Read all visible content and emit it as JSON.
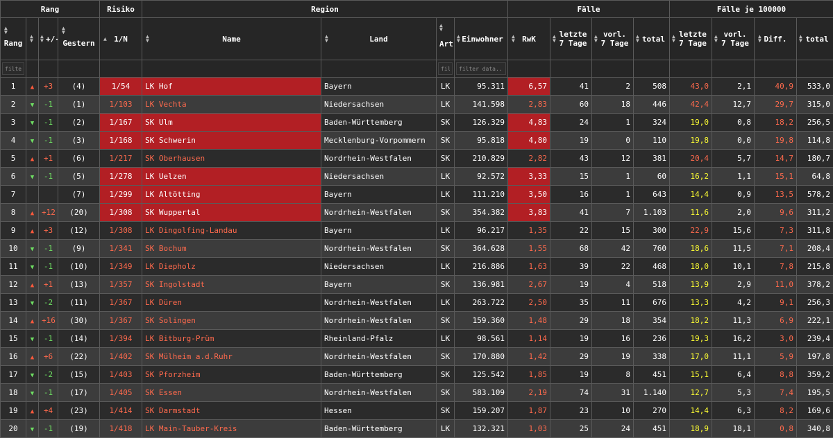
{
  "groups": {
    "rang": "Rang",
    "risiko": "Risiko",
    "region": "Region",
    "faelle": "Fälle",
    "faelle100k": "Fälle je 100000"
  },
  "columns": {
    "rang": "Rang",
    "change": "+/-",
    "gestern": "Gestern",
    "risk": "1/N",
    "name": "Name",
    "land": "Land",
    "art": "Art",
    "einwohner": "Einwohner",
    "rwk": "RwK",
    "letzte7": "letzte 7 Tage",
    "vorl7": "vorl. 7 Tage",
    "total": "total",
    "letzte7_100k": "letzte 7 Tage",
    "vorl7_100k": "vorl. 7 Tage",
    "diff": "Diff.",
    "total_100k": "total"
  },
  "filters": {
    "rang": "filter c",
    "art": "filte",
    "einwohner": "filter data..."
  },
  "rows": [
    {
      "rang": "1",
      "dir": "up",
      "change": "+3",
      "gestern": "(4)",
      "risk": "1/54",
      "name": "LK Hof",
      "land": "Bayern",
      "art": "LK",
      "einwohner": "95.311",
      "rwk": "6,57",
      "l7": "41",
      "v7": "2",
      "total": "508",
      "l7k": "43,0",
      "v7k": "2,1",
      "diff": "40,9",
      "totk": "533,0",
      "hl": true,
      "inc": "orange"
    },
    {
      "rang": "2",
      "dir": "down",
      "change": "-1",
      "gestern": "(1)",
      "risk": "1/103",
      "name": "LK Vechta",
      "land": "Niedersachsen",
      "art": "LK",
      "einwohner": "141.598",
      "rwk": "2,83",
      "l7": "60",
      "v7": "18",
      "total": "446",
      "l7k": "42,4",
      "v7k": "12,7",
      "diff": "29,7",
      "totk": "315,0",
      "hl": false,
      "inc": "orange"
    },
    {
      "rang": "3",
      "dir": "down",
      "change": "-1",
      "gestern": "(2)",
      "risk": "1/167",
      "name": "SK Ulm",
      "land": "Baden-Württemberg",
      "art": "SK",
      "einwohner": "126.329",
      "rwk": "4,83",
      "l7": "24",
      "v7": "1",
      "total": "324",
      "l7k": "19,0",
      "v7k": "0,8",
      "diff": "18,2",
      "totk": "256,5",
      "hl": true,
      "inc": "yellow"
    },
    {
      "rang": "4",
      "dir": "down",
      "change": "-1",
      "gestern": "(3)",
      "risk": "1/168",
      "name": "SK Schwerin",
      "land": "Mecklenburg-Vorpommern",
      "art": "SK",
      "einwohner": "95.818",
      "rwk": "4,80",
      "l7": "19",
      "v7": "0",
      "total": "110",
      "l7k": "19,8",
      "v7k": "0,0",
      "diff": "19,8",
      "totk": "114,8",
      "hl": true,
      "inc": "yellow"
    },
    {
      "rang": "5",
      "dir": "up",
      "change": "+1",
      "gestern": "(6)",
      "risk": "1/217",
      "name": "SK Oberhausen",
      "land": "Nordrhein-Westfalen",
      "art": "SK",
      "einwohner": "210.829",
      "rwk": "2,82",
      "l7": "43",
      "v7": "12",
      "total": "381",
      "l7k": "20,4",
      "v7k": "5,7",
      "diff": "14,7",
      "totk": "180,7",
      "hl": false,
      "inc": "orange"
    },
    {
      "rang": "6",
      "dir": "down",
      "change": "-1",
      "gestern": "(5)",
      "risk": "1/278",
      "name": "LK Uelzen",
      "land": "Niedersachsen",
      "art": "LK",
      "einwohner": "92.572",
      "rwk": "3,33",
      "l7": "15",
      "v7": "1",
      "total": "60",
      "l7k": "16,2",
      "v7k": "1,1",
      "diff": "15,1",
      "totk": "64,8",
      "hl": true,
      "inc": "yellow"
    },
    {
      "rang": "7",
      "dir": "",
      "change": "",
      "gestern": "(7)",
      "risk": "1/299",
      "name": "LK Altötting",
      "land": "Bayern",
      "art": "LK",
      "einwohner": "111.210",
      "rwk": "3,50",
      "l7": "16",
      "v7": "1",
      "total": "643",
      "l7k": "14,4",
      "v7k": "0,9",
      "diff": "13,5",
      "totk": "578,2",
      "hl": true,
      "inc": "yellow"
    },
    {
      "rang": "8",
      "dir": "up",
      "change": "+12",
      "gestern": "(20)",
      "risk": "1/308",
      "name": "SK Wuppertal",
      "land": "Nordrhein-Westfalen",
      "art": "SK",
      "einwohner": "354.382",
      "rwk": "3,83",
      "l7": "41",
      "v7": "7",
      "total": "1.103",
      "l7k": "11,6",
      "v7k": "2,0",
      "diff": "9,6",
      "totk": "311,2",
      "hl": true,
      "inc": "yellow"
    },
    {
      "rang": "9",
      "dir": "up",
      "change": "+3",
      "gestern": "(12)",
      "risk": "1/308",
      "name": "LK Dingolfing-Landau",
      "land": "Bayern",
      "art": "LK",
      "einwohner": "96.217",
      "rwk": "1,35",
      "l7": "22",
      "v7": "15",
      "total": "300",
      "l7k": "22,9",
      "v7k": "15,6",
      "diff": "7,3",
      "totk": "311,8",
      "hl": false,
      "inc": "orange"
    },
    {
      "rang": "10",
      "dir": "down",
      "change": "-1",
      "gestern": "(9)",
      "risk": "1/341",
      "name": "SK Bochum",
      "land": "Nordrhein-Westfalen",
      "art": "SK",
      "einwohner": "364.628",
      "rwk": "1,55",
      "l7": "68",
      "v7": "42",
      "total": "760",
      "l7k": "18,6",
      "v7k": "11,5",
      "diff": "7,1",
      "totk": "208,4",
      "hl": false,
      "inc": "yellow"
    },
    {
      "rang": "11",
      "dir": "down",
      "change": "-1",
      "gestern": "(10)",
      "risk": "1/349",
      "name": "LK Diepholz",
      "land": "Niedersachsen",
      "art": "LK",
      "einwohner": "216.886",
      "rwk": "1,63",
      "l7": "39",
      "v7": "22",
      "total": "468",
      "l7k": "18,0",
      "v7k": "10,1",
      "diff": "7,8",
      "totk": "215,8",
      "hl": false,
      "inc": "yellow"
    },
    {
      "rang": "12",
      "dir": "up",
      "change": "+1",
      "gestern": "(13)",
      "risk": "1/357",
      "name": "SK Ingolstadt",
      "land": "Bayern",
      "art": "SK",
      "einwohner": "136.981",
      "rwk": "2,67",
      "l7": "19",
      "v7": "4",
      "total": "518",
      "l7k": "13,9",
      "v7k": "2,9",
      "diff": "11,0",
      "totk": "378,2",
      "hl": false,
      "inc": "yellow"
    },
    {
      "rang": "13",
      "dir": "down",
      "change": "-2",
      "gestern": "(11)",
      "risk": "1/367",
      "name": "LK Düren",
      "land": "Nordrhein-Westfalen",
      "art": "LK",
      "einwohner": "263.722",
      "rwk": "2,50",
      "l7": "35",
      "v7": "11",
      "total": "676",
      "l7k": "13,3",
      "v7k": "4,2",
      "diff": "9,1",
      "totk": "256,3",
      "hl": false,
      "inc": "yellow"
    },
    {
      "rang": "14",
      "dir": "up",
      "change": "+16",
      "gestern": "(30)",
      "risk": "1/367",
      "name": "SK Solingen",
      "land": "Nordrhein-Westfalen",
      "art": "SK",
      "einwohner": "159.360",
      "rwk": "1,48",
      "l7": "29",
      "v7": "18",
      "total": "354",
      "l7k": "18,2",
      "v7k": "11,3",
      "diff": "6,9",
      "totk": "222,1",
      "hl": false,
      "inc": "yellow"
    },
    {
      "rang": "15",
      "dir": "down",
      "change": "-1",
      "gestern": "(14)",
      "risk": "1/394",
      "name": "LK Bitburg-Prüm",
      "land": "Rheinland-Pfalz",
      "art": "LK",
      "einwohner": "98.561",
      "rwk": "1,14",
      "l7": "19",
      "v7": "16",
      "total": "236",
      "l7k": "19,3",
      "v7k": "16,2",
      "diff": "3,0",
      "totk": "239,4",
      "hl": false,
      "inc": "yellow"
    },
    {
      "rang": "16",
      "dir": "up",
      "change": "+6",
      "gestern": "(22)",
      "risk": "1/402",
      "name": "SK Mülheim a.d.Ruhr",
      "land": "Nordrhein-Westfalen",
      "art": "SK",
      "einwohner": "170.880",
      "rwk": "1,42",
      "l7": "29",
      "v7": "19",
      "total": "338",
      "l7k": "17,0",
      "v7k": "11,1",
      "diff": "5,9",
      "totk": "197,8",
      "hl": false,
      "inc": "yellow"
    },
    {
      "rang": "17",
      "dir": "down",
      "change": "-2",
      "gestern": "(15)",
      "risk": "1/403",
      "name": "SK Pforzheim",
      "land": "Baden-Württemberg",
      "art": "SK",
      "einwohner": "125.542",
      "rwk": "1,85",
      "l7": "19",
      "v7": "8",
      "total": "451",
      "l7k": "15,1",
      "v7k": "6,4",
      "diff": "8,8",
      "totk": "359,2",
      "hl": false,
      "inc": "yellow"
    },
    {
      "rang": "18",
      "dir": "down",
      "change": "-1",
      "gestern": "(17)",
      "risk": "1/405",
      "name": "SK Essen",
      "land": "Nordrhein-Westfalen",
      "art": "SK",
      "einwohner": "583.109",
      "rwk": "2,19",
      "l7": "74",
      "v7": "31",
      "total": "1.140",
      "l7k": "12,7",
      "v7k": "5,3",
      "diff": "7,4",
      "totk": "195,5",
      "hl": false,
      "inc": "yellow"
    },
    {
      "rang": "19",
      "dir": "up",
      "change": "+4",
      "gestern": "(23)",
      "risk": "1/414",
      "name": "SK Darmstadt",
      "land": "Hessen",
      "art": "SK",
      "einwohner": "159.207",
      "rwk": "1,87",
      "l7": "23",
      "v7": "10",
      "total": "270",
      "l7k": "14,4",
      "v7k": "6,3",
      "diff": "8,2",
      "totk": "169,6",
      "hl": false,
      "inc": "yellow"
    },
    {
      "rang": "20",
      "dir": "down",
      "change": "-1",
      "gestern": "(19)",
      "risk": "1/418",
      "name": "LK Main-Tauber-Kreis",
      "land": "Baden-Württemberg",
      "art": "LK",
      "einwohner": "132.321",
      "rwk": "1,03",
      "l7": "25",
      "v7": "24",
      "total": "451",
      "l7k": "18,9",
      "v7k": "18,1",
      "diff": "0,8",
      "totk": "340,8",
      "hl": false,
      "inc": "yellow"
    }
  ]
}
